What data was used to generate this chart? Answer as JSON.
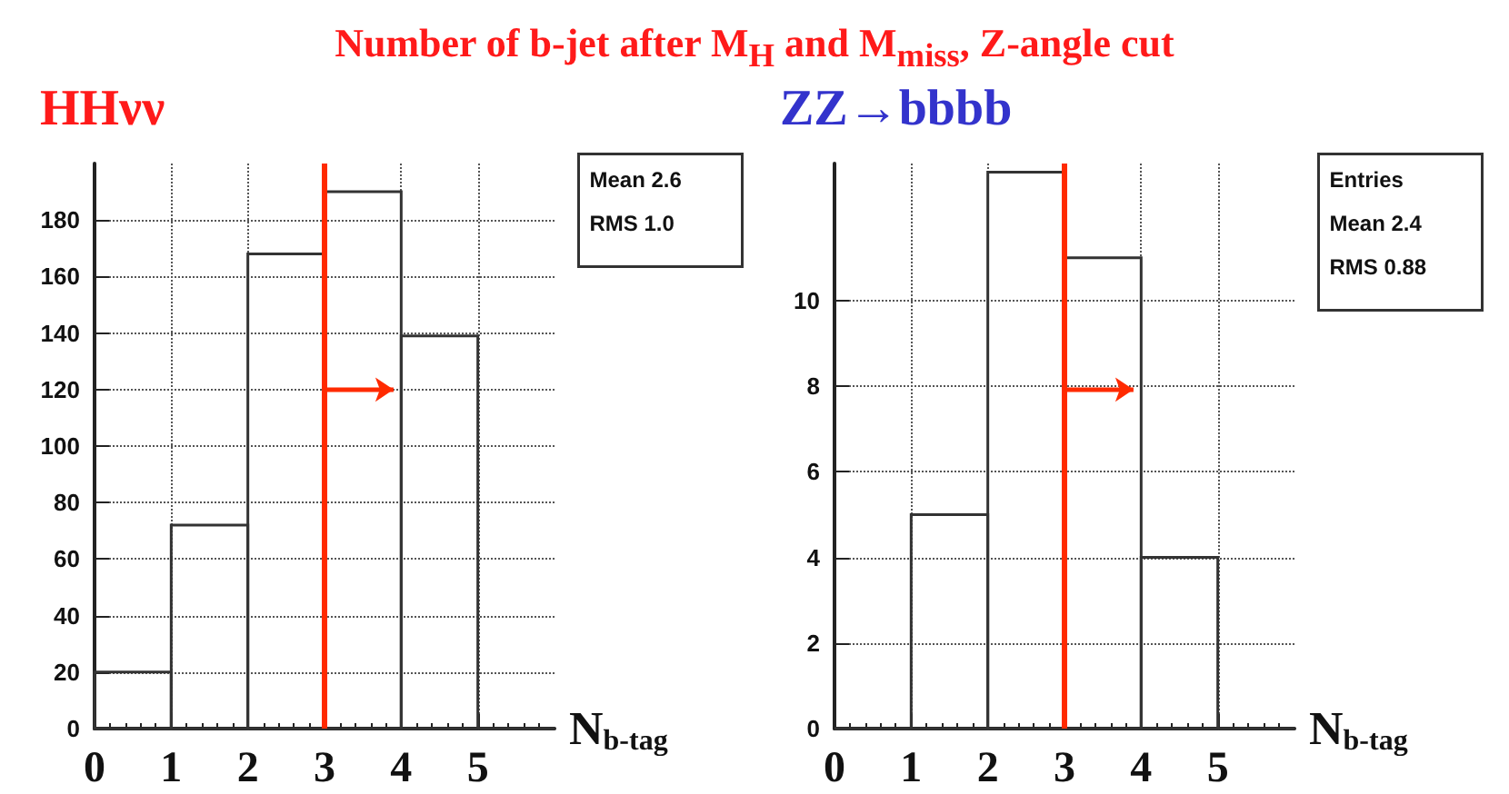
{
  "chart_data": [
    {
      "type": "histogram",
      "title": "Number of b-jet after M$_{H}$ and M$_{miss}$, Z-angle cut",
      "xlabel": "N$_{b-tag}$",
      "bins": [
        0,
        1,
        2,
        3,
        4,
        5,
        6
      ],
      "values": [
        20,
        72,
        168,
        190,
        139,
        0
      ],
      "color": "#333333",
      "xlim": [
        0,
        6
      ],
      "xticks": [
        0,
        1,
        2,
        3,
        4,
        5
      ],
      "ylim": [
        0,
        200
      ],
      "yticks": [
        0,
        20,
        40,
        60,
        80,
        100,
        120,
        140,
        160,
        180
      ],
      "grid": true,
      "ref_lines": [
        {
          "axis": "x",
          "value": 3,
          "color": "#ff2a00"
        }
      ],
      "annotations": [
        "HHνν",
        "Mean 2.6",
        "RMS 1.0"
      ]
    },
    {
      "type": "histogram",
      "xlabel": "N$_{b-tag}$",
      "bins": [
        0,
        1,
        2,
        3,
        4,
        5,
        6
      ],
      "values": [
        0,
        5,
        13,
        11,
        4,
        0
      ],
      "color": "#333333",
      "xlim": [
        0,
        6
      ],
      "xticks": [
        0,
        1,
        2,
        3,
        4,
        5
      ],
      "ylim": [
        0,
        13.2
      ],
      "yticks": [
        0,
        2,
        4,
        6,
        8,
        10
      ],
      "grid": true,
      "ref_lines": [
        {
          "axis": "x",
          "value": 3,
          "color": "#ff2a00"
        }
      ],
      "annotations": [
        "ZZ→bbbb",
        "Entries",
        "Mean 2.4",
        "RMS 0.88"
      ]
    }
  ]
}
